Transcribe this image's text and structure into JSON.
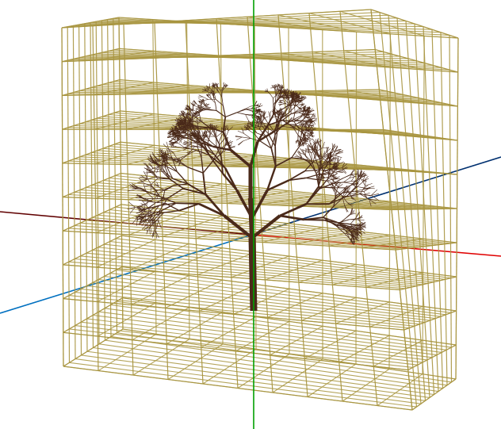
{
  "scene": {
    "background": "#ffffff",
    "grid_color": "#a89540",
    "grid_divisions": 10,
    "axis_colors": {
      "x_axis": "#e00000",
      "x_axis_negative": "#600000",
      "y_axis": "#00a000",
      "z_axis": "#0070c0",
      "z_axis_negative": "#003070"
    },
    "tree_color": "#4a2a1a",
    "objects": [
      "voxel-grid-cube",
      "tree-model",
      "axis-x",
      "axis-y",
      "axis-z"
    ]
  }
}
